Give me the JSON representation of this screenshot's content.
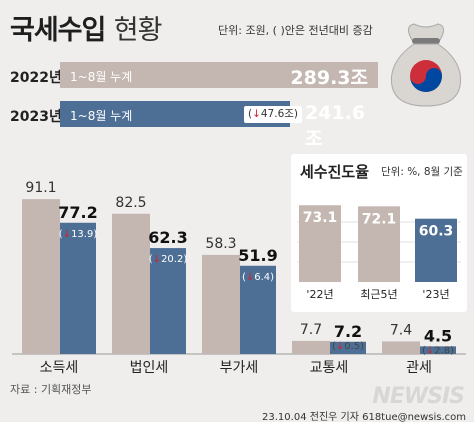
{
  "title": "국세수입",
  "title_sub": "현황",
  "unit_note": "단위: 조원, ( )안은 전년대비 증감",
  "totals": [
    {
      "year": "2022년",
      "period": "1~8월 누계",
      "value": "289.3조"
    },
    {
      "year": "2023년",
      "period": "1~8월 누계",
      "change": "47.6조",
      "value": "241.6조"
    }
  ],
  "chart_data": [
    {
      "type": "bar",
      "categories": [
        "소득세",
        "법인세",
        "부가세",
        "교통세",
        "관세"
      ],
      "series": [
        {
          "name": "2022년",
          "values": [
            91.1,
            82.5,
            58.3,
            7.7,
            7.4
          ]
        },
        {
          "name": "2023년",
          "values": [
            77.2,
            62.3,
            51.9,
            7.2,
            4.5
          ]
        }
      ],
      "value_labels_2022": [
        "91.1",
        "82.5",
        "58.3",
        "7.7",
        "7.4"
      ],
      "value_labels_2023": [
        "77.2",
        "62.3",
        "51.9",
        "7.2",
        "4.5"
      ],
      "change_labels": [
        "13.9",
        "20.2",
        "6.4",
        "0.5",
        "2.8"
      ],
      "colors": {
        "y2022": "#c4b7b1",
        "y2023": "#4d6f96",
        "decrease": "#d4202c"
      }
    },
    {
      "type": "bar",
      "title": "세수진도율",
      "unit_note": "단위: %, 8월 기준",
      "categories": [
        "'22년",
        "최근5년",
        "'23년"
      ],
      "values": [
        73.1,
        72.1,
        60.3
      ],
      "value_labels": [
        "73.1",
        "72.1",
        "60.3"
      ],
      "colors": [
        "#c4b7b1",
        "#c4b7b1",
        "#4d6f96"
      ]
    }
  ],
  "source": "자료 : 기획재정부",
  "credit": "23.10.04  전진우 기자  618tue@newsis.com",
  "watermark": "NEWSIS",
  "icon": "money-bag-taegeuk-icon"
}
